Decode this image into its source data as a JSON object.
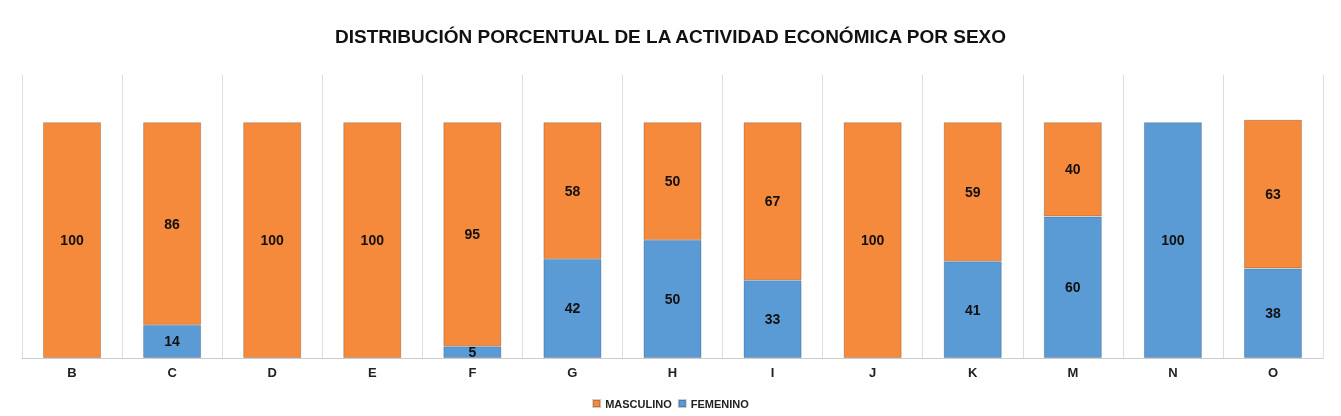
{
  "chart_data": {
    "type": "bar",
    "title": "DISTRIBUCIÓN PORCENTUAL DE LA ACTIVIDAD ECONÓMICA POR SEXO",
    "categories": [
      "B",
      "C",
      "D",
      "E",
      "F",
      "G",
      "H",
      "I",
      "J",
      "K",
      "M",
      "N",
      "O"
    ],
    "stacked": true,
    "data_labels": true,
    "legend": "bottom",
    "grid": "x",
    "series": [
      {
        "name": "FEMENINO",
        "color": "#5b9bd5",
        "values": [
          null,
          14,
          null,
          null,
          5,
          42,
          50,
          33,
          null,
          41,
          60,
          100,
          38
        ]
      },
      {
        "name": "MASCULINO",
        "color": "#f58a3c",
        "values": [
          100,
          86,
          100,
          100,
          95,
          58,
          50,
          67,
          100,
          59,
          40,
          null,
          63
        ]
      }
    ]
  }
}
